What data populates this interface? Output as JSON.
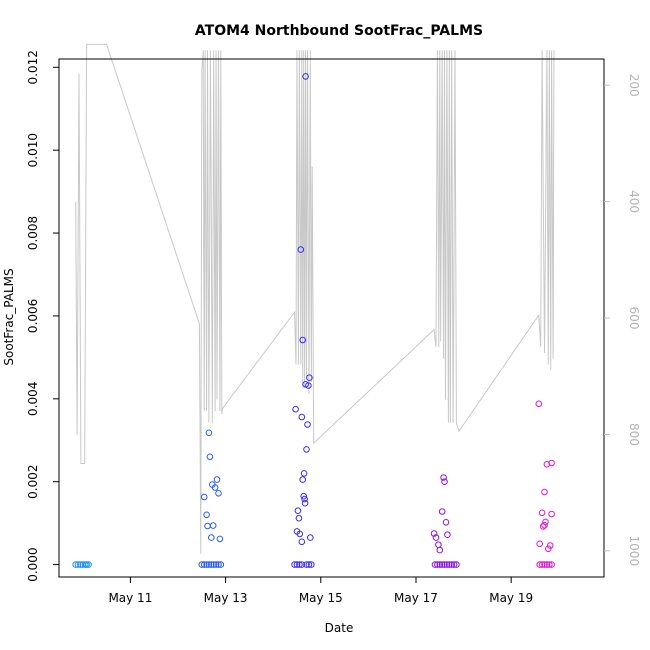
{
  "chart_data": {
    "type": "scatter",
    "title": "ATOM4 Northbound SootFrac_PALMS",
    "xlabel": "Date",
    "ylabel": "SootFrac_PALMS",
    "x_ticks": [
      {
        "label": "May 11",
        "day": 11
      },
      {
        "label": "May 13",
        "day": 13
      },
      {
        "label": "May 15",
        "day": 15
      },
      {
        "label": "May 17",
        "day": 17
      },
      {
        "label": "May 19",
        "day": 19
      }
    ],
    "xlim_day": [
      9.5,
      20.95
    ],
    "ylim": [
      -0.0003,
      0.0122
    ],
    "y_ticks": [
      "0.000",
      "0.002",
      "0.004",
      "0.006",
      "0.008",
      "0.010",
      "0.012"
    ],
    "y2_ticks": [
      "200",
      "400",
      "600",
      "800",
      "1000"
    ],
    "y2lim": [
      1045,
      155
    ],
    "y2_color": "#bebebe",
    "grid": false,
    "series": [
      {
        "color": "#1e90ff",
        "points": [
          [
            9.85,
            0
          ],
          [
            9.9,
            0
          ],
          [
            9.95,
            0
          ],
          [
            10.0,
            0
          ],
          [
            10.05,
            0
          ],
          [
            10.08,
            0
          ],
          [
            10.12,
            0
          ]
        ]
      },
      {
        "color": "#2a5cf5",
        "points": [
          [
            12.5,
            0
          ],
          [
            12.55,
            0
          ],
          [
            12.6,
            0
          ],
          [
            12.65,
            0
          ],
          [
            12.7,
            0
          ],
          [
            12.75,
            0
          ],
          [
            12.8,
            0
          ],
          [
            12.85,
            0
          ],
          [
            12.9,
            0
          ],
          [
            12.55,
            0.00163
          ],
          [
            12.6,
            0.0012
          ],
          [
            12.62,
            0.00093
          ],
          [
            12.65,
            0.00318
          ],
          [
            12.67,
            0.0026
          ],
          [
            12.7,
            0.00065
          ],
          [
            12.72,
            0.00193
          ],
          [
            12.74,
            0.00094
          ],
          [
            12.78,
            0.00186
          ],
          [
            12.82,
            0.00205
          ],
          [
            12.85,
            0.00172
          ],
          [
            12.88,
            0.00062
          ]
        ]
      },
      {
        "color": "#3a2cef",
        "points": [
          [
            14.45,
            0
          ],
          [
            14.5,
            0
          ],
          [
            14.55,
            0
          ],
          [
            14.6,
            0
          ],
          [
            14.7,
            0
          ],
          [
            14.75,
            0
          ],
          [
            14.8,
            0
          ],
          [
            14.47,
            0.00375
          ],
          [
            14.5,
            0.0008
          ],
          [
            14.52,
            0.0013
          ],
          [
            14.54,
            0.00112
          ],
          [
            14.56,
            0.00074
          ],
          [
            14.58,
            0.0076
          ],
          [
            14.6,
            0.00356
          ],
          [
            14.62,
            0.00542
          ],
          [
            14.62,
            0.00205
          ],
          [
            14.64,
            0.00165
          ],
          [
            14.65,
            0.0022
          ],
          [
            14.66,
            0.00158
          ],
          [
            14.67,
            0.00148
          ],
          [
            14.68,
            0.00435
          ],
          [
            14.68,
            0.01178
          ],
          [
            14.7,
            0.00278
          ],
          [
            14.72,
            0.00338
          ],
          [
            14.74,
            0.00432
          ],
          [
            14.76,
            0.00451
          ],
          [
            14.78,
            0.00065
          ],
          [
            14.6,
            0.00055
          ]
        ]
      },
      {
        "color": "#8a16e0",
        "points": [
          [
            17.4,
            0
          ],
          [
            17.45,
            0
          ],
          [
            17.5,
            0
          ],
          [
            17.55,
            0
          ],
          [
            17.6,
            0
          ],
          [
            17.65,
            0
          ],
          [
            17.7,
            0
          ],
          [
            17.75,
            0
          ],
          [
            17.8,
            0
          ],
          [
            17.85,
            0
          ],
          [
            17.38,
            0.00075
          ],
          [
            17.42,
            0.00065
          ],
          [
            17.47,
            0.00048
          ],
          [
            17.5,
            0.00035
          ],
          [
            17.55,
            0.00128
          ],
          [
            17.58,
            0.0021
          ],
          [
            17.6,
            0.002
          ],
          [
            17.63,
            0.00102
          ],
          [
            17.66,
            0.00072
          ]
        ]
      },
      {
        "color": "#e016d0",
        "points": [
          [
            19.6,
            0
          ],
          [
            19.65,
            0
          ],
          [
            19.7,
            0
          ],
          [
            19.75,
            0
          ],
          [
            19.8,
            0
          ],
          [
            19.85,
            0
          ],
          [
            19.58,
            0.00388
          ],
          [
            19.6,
            0.0005
          ],
          [
            19.65,
            0.00125
          ],
          [
            19.67,
            0.00092
          ],
          [
            19.7,
            0.00095
          ],
          [
            19.7,
            0.00175
          ],
          [
            19.72,
            0.00103
          ],
          [
            19.75,
            0.00242
          ],
          [
            19.78,
            0.00038
          ],
          [
            19.82,
            0.00046
          ],
          [
            19.85,
            0.00122
          ],
          [
            19.85,
            0.00245
          ]
        ]
      }
    ],
    "secondary_line": {
      "color": "#c8c8c8",
      "points": [
        [
          9.85,
          400
        ],
        [
          9.88,
          800
        ],
        [
          9.92,
          180
        ],
        [
          9.96,
          850
        ],
        [
          10.0,
          850
        ],
        [
          10.04,
          850
        ],
        [
          10.08,
          130
        ],
        [
          10.5,
          130
        ],
        [
          12.45,
          610
        ],
        [
          12.48,
          1005
        ],
        [
          12.5,
          175
        ],
        [
          12.53,
          140
        ],
        [
          12.55,
          760
        ],
        [
          12.57,
          140
        ],
        [
          12.6,
          760
        ],
        [
          12.62,
          140
        ],
        [
          12.65,
          780
        ],
        [
          12.68,
          140
        ],
        [
          12.72,
          780
        ],
        [
          12.75,
          140
        ],
        [
          12.78,
          760
        ],
        [
          12.8,
          140
        ],
        [
          12.82,
          740
        ],
        [
          12.85,
          140
        ],
        [
          12.88,
          760
        ],
        [
          12.9,
          140
        ],
        [
          12.92,
          765
        ],
        [
          12.94,
          755
        ],
        [
          14.45,
          590
        ],
        [
          14.48,
          680
        ],
        [
          14.5,
          140
        ],
        [
          14.53,
          680
        ],
        [
          14.55,
          140
        ],
        [
          14.58,
          680
        ],
        [
          14.6,
          140
        ],
        [
          14.62,
          720
        ],
        [
          14.64,
          140
        ],
        [
          14.66,
          720
        ],
        [
          14.68,
          140
        ],
        [
          14.7,
          700
        ],
        [
          14.72,
          140
        ],
        [
          14.75,
          730
        ],
        [
          14.78,
          140
        ],
        [
          14.8,
          710
        ],
        [
          14.82,
          340
        ],
        [
          14.85,
          815
        ],
        [
          17.38,
          620
        ],
        [
          17.42,
          650
        ],
        [
          17.45,
          140
        ],
        [
          17.48,
          650
        ],
        [
          17.5,
          140
        ],
        [
          17.52,
          640
        ],
        [
          17.55,
          140
        ],
        [
          17.58,
          670
        ],
        [
          17.6,
          140
        ],
        [
          17.62,
          740
        ],
        [
          17.65,
          140
        ],
        [
          17.68,
          780
        ],
        [
          17.7,
          140
        ],
        [
          17.72,
          780
        ],
        [
          17.75,
          140
        ],
        [
          17.78,
          780
        ],
        [
          17.82,
          140
        ],
        [
          17.85,
          780
        ],
        [
          17.9,
          795
        ],
        [
          19.58,
          595
        ],
        [
          19.62,
          650
        ],
        [
          19.65,
          140
        ],
        [
          19.7,
          660
        ],
        [
          19.75,
          140
        ],
        [
          19.78,
          680
        ],
        [
          19.8,
          140
        ],
        [
          19.83,
          690
        ],
        [
          19.85,
          140
        ],
        [
          19.88,
          670
        ],
        [
          19.9,
          140
        ]
      ]
    }
  }
}
